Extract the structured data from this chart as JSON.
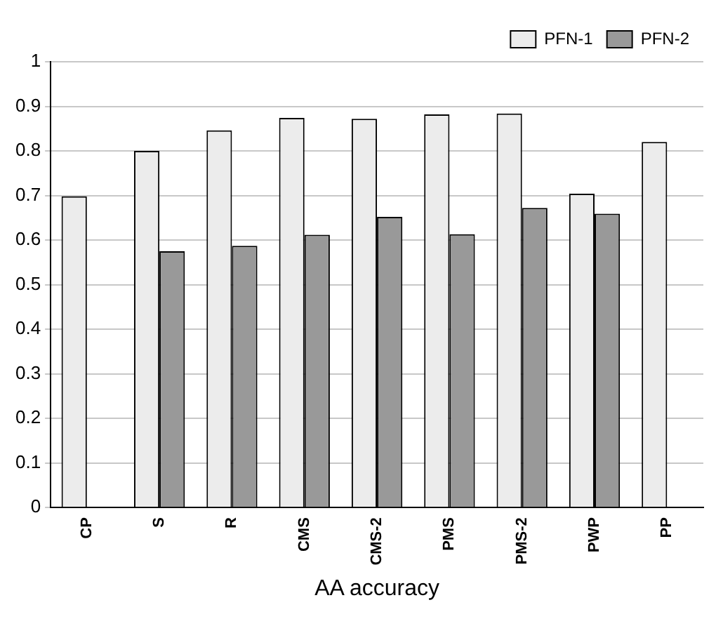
{
  "chart_data": {
    "type": "bar",
    "xlabel": "AA accuracy",
    "categories": [
      "CP",
      "S",
      "R",
      "CMS",
      "CMS-2",
      "PMS",
      "PMS-2",
      "PWP",
      "PP"
    ],
    "series": [
      {
        "name": "PFN-1",
        "color": "#ececec",
        "values": [
          0.698,
          0.8,
          0.846,
          0.874,
          0.872,
          0.882,
          0.884,
          0.704,
          0.82
        ]
      },
      {
        "name": "PFN-2",
        "color": "#999999",
        "values": [
          null,
          0.575,
          0.587,
          0.612,
          0.652,
          0.613,
          0.672,
          0.659,
          null
        ]
      }
    ],
    "ylim": [
      0,
      1
    ],
    "yticks": [
      0,
      0.1,
      0.2,
      0.3,
      0.4,
      0.5,
      0.6,
      0.7,
      0.8,
      0.9,
      1
    ],
    "grid": "y",
    "legend": "top right"
  }
}
